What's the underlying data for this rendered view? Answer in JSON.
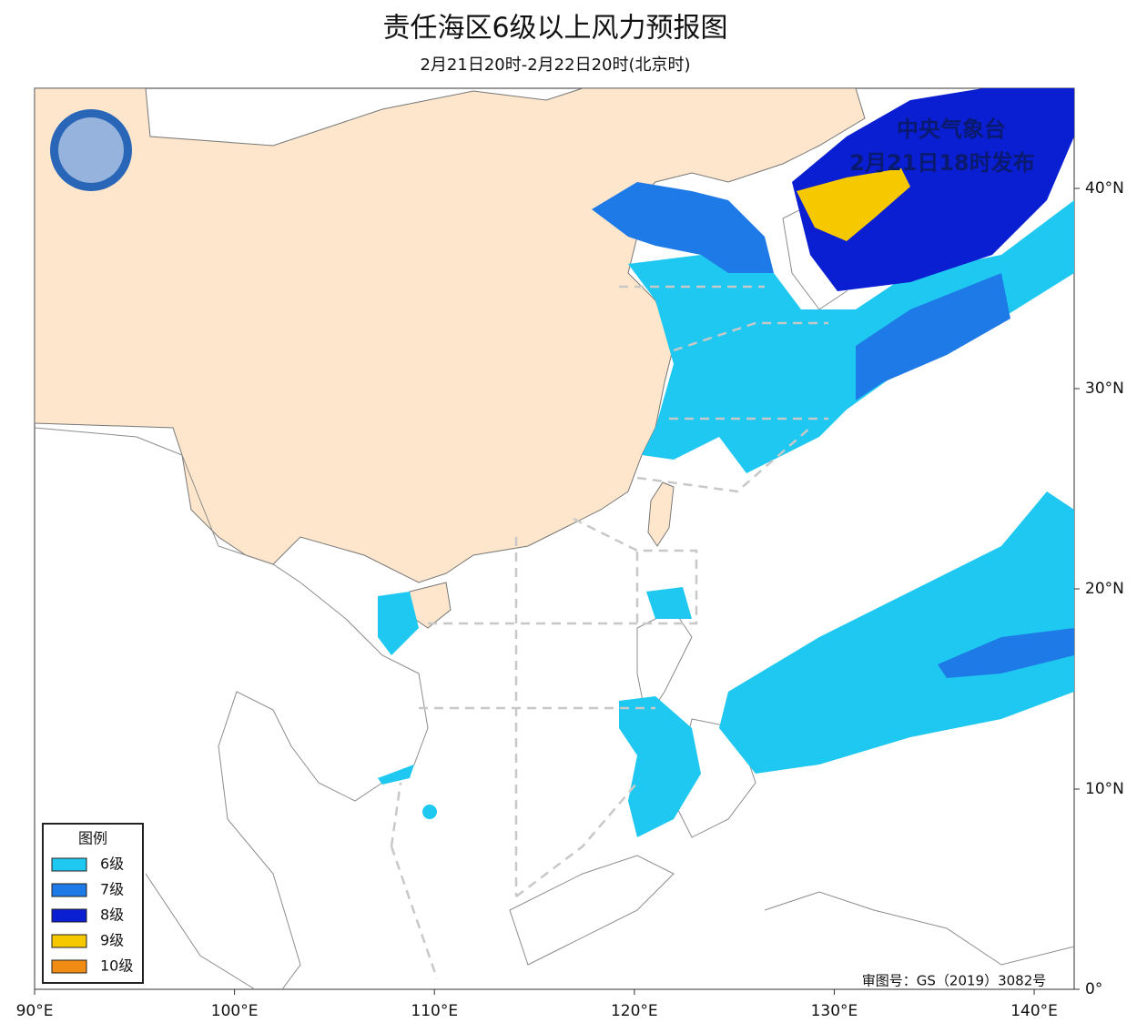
{
  "header": {
    "title": "责任海区6级以上风力预报图",
    "subtitle": "2月21日20时-2月22日20时(北京时)"
  },
  "issuer": {
    "line1": "中央气象台",
    "line2": "2月21日18时发布"
  },
  "map": {
    "lonlim": [
      90,
      142
    ],
    "latlim": [
      0,
      45
    ],
    "lonticks": [
      {
        "value": 90,
        "label": "90°E"
      },
      {
        "value": 100,
        "label": "100°E"
      },
      {
        "value": 110,
        "label": "110°E"
      },
      {
        "value": 120,
        "label": "120°E"
      },
      {
        "value": 130,
        "label": "130°E"
      },
      {
        "value": 140,
        "label": "140°E"
      }
    ],
    "latticks": [
      {
        "value": 0,
        "label": "0°"
      },
      {
        "value": 10,
        "label": "10°N"
      },
      {
        "value": 20,
        "label": "20°N"
      },
      {
        "value": 30,
        "label": "30°N"
      },
      {
        "value": 40,
        "label": "40°N"
      }
    ]
  },
  "legend": {
    "title": "图例",
    "items": [
      {
        "label": "6级",
        "color": "#1ec8f0"
      },
      {
        "label": "7级",
        "color": "#1e7ae6"
      },
      {
        "label": "8级",
        "color": "#0a1ed2"
      },
      {
        "label": "9级",
        "color": "#f5c800"
      },
      {
        "label": "10级",
        "color": "#f08c14"
      }
    ]
  },
  "approval": "审图号：GS（2019）3082号"
}
